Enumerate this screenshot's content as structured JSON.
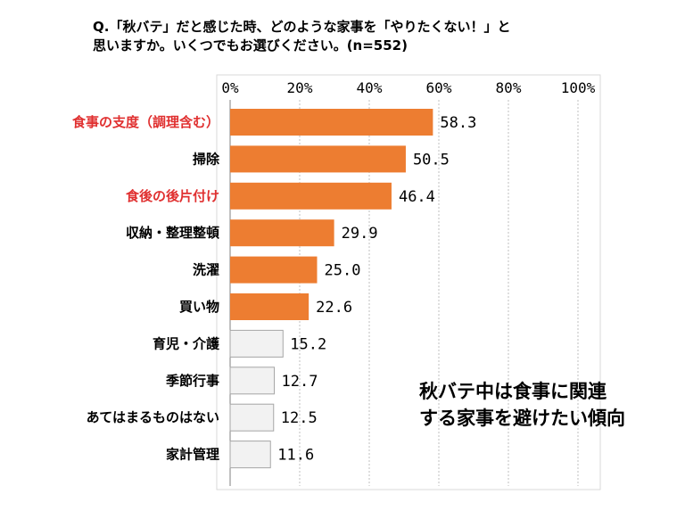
{
  "question": "Q.「秋バテ」だと感じた時、どのような家事を「やりたくない！」と\n思いますか。いくつでもお選びください。(n=552)",
  "annotation": "秋バテ中は食事に関連\nする家事を避けたい傾向",
  "colors": {
    "bar_primary": "#ED7D31",
    "bar_secondary": "#F2F2F2",
    "highlight_label": "#E03030",
    "label": "#000000",
    "grid": "#BFBFBF"
  },
  "chart_data": {
    "type": "bar",
    "orientation": "horizontal",
    "xlim": [
      0,
      100
    ],
    "ticks": [
      "0%",
      "20%",
      "40%",
      "60%",
      "80%",
      "100%"
    ],
    "tick_values": [
      0,
      20,
      40,
      60,
      80,
      100
    ],
    "grid": true,
    "categories": [
      "食事の支度（調理含む）",
      "掃除",
      "食後の後片付け",
      "収納・整理整頓",
      "洗濯",
      "買い物",
      "育児・介護",
      "季節行事",
      "あてはまるものはない",
      "家計管理"
    ],
    "values": [
      58.3,
      50.5,
      46.4,
      29.9,
      25.0,
      22.6,
      15.2,
      12.7,
      12.5,
      11.6
    ],
    "value_labels": [
      "58.3",
      "50.5",
      "46.4",
      "29.9",
      "25.0",
      "22.6",
      "15.2",
      "12.7",
      "12.5",
      "11.6"
    ],
    "highlighted": [
      true,
      false,
      true,
      false,
      false,
      false,
      false,
      false,
      false,
      false
    ],
    "bar_style": [
      "primary",
      "primary",
      "primary",
      "primary",
      "primary",
      "primary",
      "secondary",
      "secondary",
      "secondary",
      "secondary"
    ]
  }
}
